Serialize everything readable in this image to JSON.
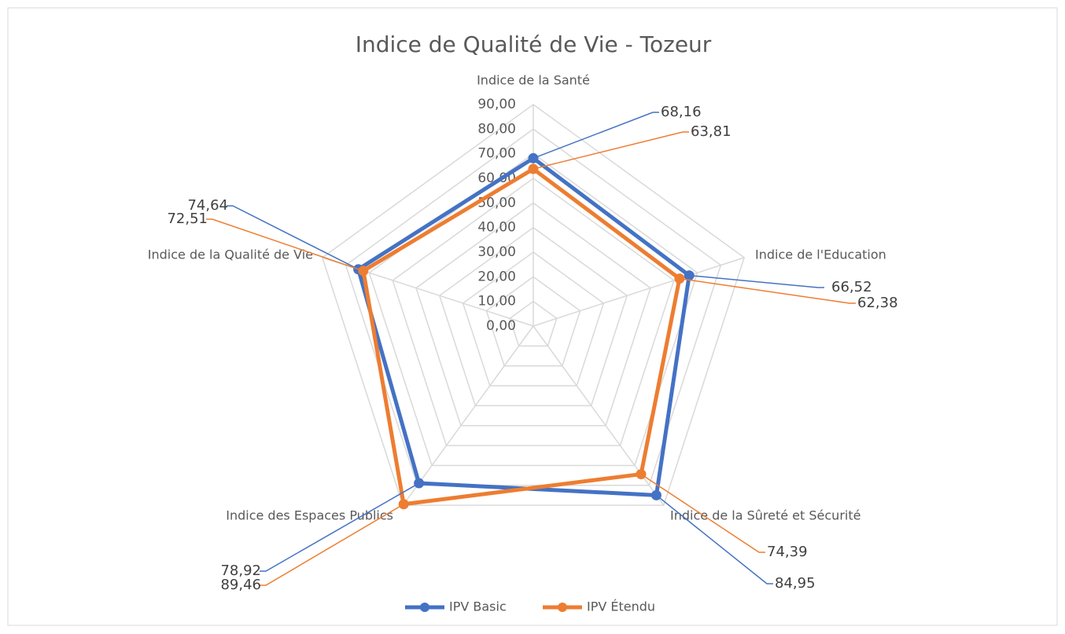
{
  "chart_data": {
    "type": "radar",
    "title": "Indice de Qualité de Vie - Tozeur",
    "categories": [
      "Indice de la Santé",
      "Indice de l'Education",
      "Indice de la Sûreté et Sécurité",
      "Indice des Espaces Publics",
      "Indice de la Qualité de  Vie"
    ],
    "series": [
      {
        "name": "IPV Basic",
        "color": "#4472c4",
        "values": [
          68.16,
          66.52,
          84.95,
          78.92,
          74.64
        ],
        "value_labels": [
          "68,16",
          "66,52",
          "84,95",
          "78,92",
          "74,64"
        ]
      },
      {
        "name": "IPV Étendu",
        "color": "#ed7d31",
        "values": [
          63.81,
          62.38,
          74.39,
          89.46,
          72.51
        ],
        "value_labels": [
          "63,81",
          "62,38",
          "74,39",
          "89,46",
          "72,51"
        ]
      }
    ],
    "rlim": [
      0,
      90
    ],
    "rticks": [
      {
        "value": 0,
        "label": "0,00"
      },
      {
        "value": 10,
        "label": "10,00"
      },
      {
        "value": 20,
        "label": "20,00"
      },
      {
        "value": 30,
        "label": "30,00"
      },
      {
        "value": 40,
        "label": "40,00"
      },
      {
        "value": 50,
        "label": "50,00"
      },
      {
        "value": 60,
        "label": "60,00"
      },
      {
        "value": 70,
        "label": "70,00"
      },
      {
        "value": 80,
        "label": "80,00"
      },
      {
        "value": 90,
        "label": "90,00"
      }
    ],
    "grid": true,
    "legend": "bottom"
  }
}
